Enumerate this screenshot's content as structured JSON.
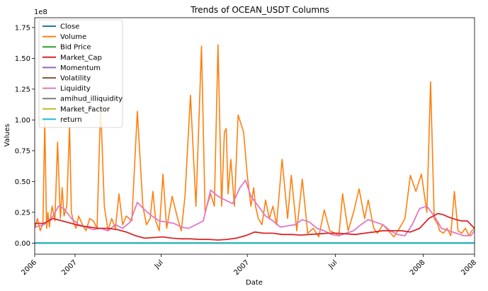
{
  "chart_data": {
    "type": "line",
    "title": "Trends of OCEAN_USDT Columns",
    "xlabel": "Date",
    "ylabel": "Values",
    "y_offset_label": "1e8",
    "y_ticks": [
      0,
      0.25,
      0.5,
      0.75,
      1.0,
      1.25,
      1.5,
      1.75
    ],
    "y_tick_labels": [
      "0.00",
      "0.25",
      "0.50",
      "0.75",
      "1.00",
      "1.25",
      "1.50",
      "1.75"
    ],
    "ylim": [
      -0.09,
      1.83
    ],
    "xlim": [
      0,
      24
    ],
    "x_ticks": [
      0,
      2.2,
      6.9,
      11.6,
      16.4,
      21.2,
      24
    ],
    "x_tick_labels": [
      "2006",
      "2007",
      "Jul",
      "2007",
      "Jul",
      "2008",
      "2008"
    ],
    "legend": {
      "placement": "upper-left",
      "entries": [
        {
          "label": "Close",
          "color": "#1f77b4"
        },
        {
          "label": "Volume",
          "color": "#ff7f0e"
        },
        {
          "label": "Bid Price",
          "color": "#2ca02c"
        },
        {
          "label": "Market_Cap",
          "color": "#d62728"
        },
        {
          "label": "Momentum",
          "color": "#9467bd"
        },
        {
          "label": "Volatility",
          "color": "#8c564b"
        },
        {
          "label": "Liquidity",
          "color": "#e377c2"
        },
        {
          "label": "amihud_illiquidity",
          "color": "#7f7f7f"
        },
        {
          "label": "Market_Factor",
          "color": "#bcbd22"
        },
        {
          "label": "return",
          "color": "#17becf"
        }
      ]
    },
    "series": [
      {
        "name": "Close",
        "color": "#1f77b4",
        "x": [
          0,
          24
        ],
        "values": [
          0,
          0
        ]
      },
      {
        "name": "Bid Price",
        "color": "#2ca02c",
        "x": [
          0,
          24
        ],
        "values": [
          0,
          0
        ]
      },
      {
        "name": "Momentum",
        "color": "#9467bd",
        "x": [
          0,
          24
        ],
        "values": [
          0,
          0
        ]
      },
      {
        "name": "Volatility",
        "color": "#8c564b",
        "x": [
          0,
          24
        ],
        "values": [
          0,
          0
        ]
      },
      {
        "name": "amihud_illiquidity",
        "color": "#7f7f7f",
        "x": [
          0,
          24
        ],
        "values": [
          0,
          0
        ]
      },
      {
        "name": "Market_Factor",
        "color": "#bcbd22",
        "x": [
          0,
          24
        ],
        "values": [
          0,
          0
        ]
      },
      {
        "name": "return",
        "color": "#17becf",
        "x": [
          0,
          24
        ],
        "values": [
          0,
          0
        ]
      },
      {
        "name": "Volume",
        "color": "#ff7f0e",
        "x": [
          0,
          0.15,
          0.3,
          0.45,
          0.55,
          0.65,
          0.72,
          0.8,
          0.95,
          1.1,
          1.25,
          1.4,
          1.5,
          1.6,
          1.75,
          1.9,
          2.0,
          2.1,
          2.25,
          2.4,
          2.6,
          2.8,
          3.0,
          3.2,
          3.4,
          3.6,
          3.8,
          4.0,
          4.2,
          4.4,
          4.6,
          4.8,
          5.0,
          5.3,
          5.6,
          5.9,
          6.1,
          6.3,
          6.45,
          6.6,
          6.8,
          7.0,
          7.2,
          7.5,
          7.8,
          8.0,
          8.2,
          8.5,
          8.8,
          9.1,
          9.3,
          9.6,
          9.8,
          10.0,
          10.2,
          10.35,
          10.45,
          10.55,
          10.7,
          10.9,
          11.1,
          11.4,
          11.6,
          11.8,
          11.95,
          12.05,
          12.2,
          12.4,
          12.6,
          12.8,
          13.0,
          13.2,
          13.5,
          13.8,
          14.0,
          14.3,
          14.6,
          14.9,
          15.2,
          15.5,
          15.8,
          16.1,
          16.4,
          16.6,
          16.8,
          17.1,
          17.4,
          17.7,
          18.0,
          18.2,
          18.5,
          18.7,
          19.0,
          19.3,
          19.6,
          19.9,
          20.2,
          20.5,
          20.8,
          21.1,
          21.4,
          21.6,
          21.8,
          22.0,
          22.1,
          22.3,
          22.5,
          22.7,
          22.9,
          23.1,
          23.3,
          23.5,
          23.7,
          23.85,
          24.0
        ],
        "values": [
          0.12,
          0.2,
          0.1,
          0.16,
          0.99,
          0.12,
          0.25,
          0.13,
          0.3,
          0.18,
          0.82,
          0.2,
          0.45,
          0.22,
          0.3,
          0.96,
          0.25,
          0.18,
          0.12,
          0.22,
          0.15,
          0.1,
          0.2,
          0.18,
          0.12,
          1.12,
          0.3,
          0.1,
          0.2,
          0.12,
          0.4,
          0.15,
          0.22,
          0.18,
          1.07,
          0.3,
          0.15,
          0.2,
          0.42,
          0.18,
          0.1,
          0.56,
          0.12,
          0.38,
          0.2,
          0.1,
          0.38,
          1.2,
          0.3,
          1.6,
          0.25,
          0.4,
          0.3,
          1.61,
          0.3,
          0.9,
          0.93,
          0.4,
          0.68,
          0.3,
          1.04,
          0.9,
          0.55,
          0.3,
          0.45,
          0.3,
          0.2,
          0.15,
          0.35,
          0.2,
          0.3,
          0.15,
          0.68,
          0.2,
          0.55,
          0.1,
          0.52,
          0.08,
          0.12,
          0.05,
          0.27,
          0.1,
          0.08,
          0.06,
          0.4,
          0.1,
          0.25,
          0.44,
          0.2,
          0.35,
          0.12,
          0.08,
          0.15,
          0.1,
          0.05,
          0.12,
          0.2,
          0.55,
          0.42,
          0.56,
          0.25,
          1.31,
          0.2,
          0.15,
          0.1,
          0.08,
          0.12,
          0.06,
          0.42,
          0.1,
          0.08,
          0.12,
          0.06,
          0.1,
          0.12
        ]
      },
      {
        "name": "Liquidity",
        "color": "#e377c2",
        "x": [
          0,
          0.5,
          1.0,
          1.3,
          1.6,
          2.0,
          2.4,
          2.8,
          3.2,
          3.6,
          4.0,
          4.4,
          4.8,
          5.2,
          5.6,
          6.0,
          6.4,
          6.8,
          7.2,
          7.6,
          8.0,
          8.4,
          8.8,
          9.2,
          9.6,
          10.0,
          10.4,
          10.8,
          11.2,
          11.5,
          11.8,
          12.2,
          12.6,
          13.0,
          13.4,
          13.8,
          14.2,
          14.6,
          15.0,
          15.4,
          15.8,
          16.2,
          16.6,
          17.0,
          17.4,
          17.8,
          18.2,
          18.6,
          19.0,
          19.4,
          19.8,
          20.2,
          20.6,
          21.0,
          21.4,
          21.8,
          22.2,
          22.6,
          23.0,
          23.4,
          23.8,
          24.0
        ],
        "values": [
          0.13,
          0.15,
          0.22,
          0.3,
          0.28,
          0.2,
          0.15,
          0.13,
          0.11,
          0.12,
          0.1,
          0.15,
          0.12,
          0.17,
          0.33,
          0.27,
          0.22,
          0.18,
          0.17,
          0.16,
          0.13,
          0.12,
          0.15,
          0.18,
          0.43,
          0.38,
          0.35,
          0.32,
          0.45,
          0.51,
          0.38,
          0.3,
          0.22,
          0.18,
          0.13,
          0.14,
          0.15,
          0.19,
          0.17,
          0.12,
          0.1,
          0.07,
          0.06,
          0.08,
          0.1,
          0.15,
          0.19,
          0.17,
          0.15,
          0.1,
          0.07,
          0.06,
          0.15,
          0.28,
          0.3,
          0.22,
          0.12,
          0.1,
          0.08,
          0.06,
          0.06,
          0.1
        ]
      },
      {
        "name": "Market_Cap",
        "color": "#d62728",
        "x": [
          0,
          0.5,
          1.0,
          1.5,
          2.0,
          2.5,
          3.0,
          3.5,
          4.0,
          4.5,
          5.0,
          5.5,
          6.0,
          6.5,
          7.0,
          7.5,
          8.0,
          8.5,
          9.0,
          9.5,
          10.0,
          10.5,
          11.0,
          11.5,
          12.0,
          12.5,
          13.0,
          13.5,
          14.0,
          14.5,
          15.0,
          15.5,
          16.0,
          16.5,
          17.0,
          17.5,
          18.0,
          18.5,
          19.0,
          19.5,
          20.0,
          20.5,
          21.0,
          21.5,
          22.0,
          22.3,
          22.6,
          23.0,
          23.3,
          23.6,
          24.0
        ],
        "values": [
          0.16,
          0.16,
          0.2,
          0.18,
          0.16,
          0.14,
          0.13,
          0.12,
          0.12,
          0.11,
          0.09,
          0.06,
          0.04,
          0.045,
          0.05,
          0.04,
          0.035,
          0.035,
          0.03,
          0.03,
          0.025,
          0.03,
          0.04,
          0.06,
          0.09,
          0.08,
          0.08,
          0.07,
          0.07,
          0.065,
          0.07,
          0.075,
          0.08,
          0.08,
          0.075,
          0.07,
          0.08,
          0.09,
          0.1,
          0.1,
          0.1,
          0.09,
          0.12,
          0.2,
          0.24,
          0.23,
          0.21,
          0.19,
          0.18,
          0.18,
          0.12
        ]
      }
    ]
  }
}
